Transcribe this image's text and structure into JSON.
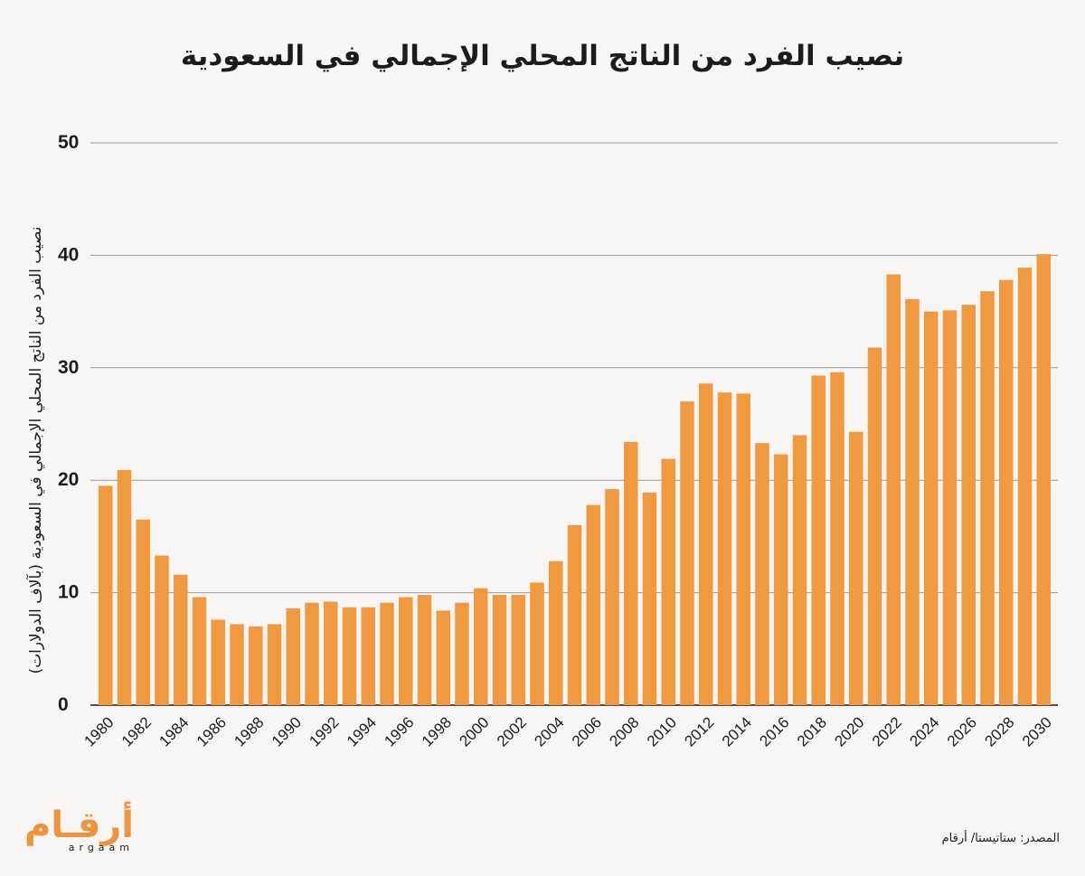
{
  "chart_data": {
    "type": "bar",
    "title": "نصيب الفرد من الناتج المحلي الإجمالي في السعودية",
    "ylabel": "نصيب الفرد من الناتج المحلي الإجمالي في السعودية (بآلاف الدولارات)",
    "xlabel": "",
    "ylim": [
      0,
      50
    ],
    "yticks": [
      0,
      10,
      20,
      30,
      40,
      50
    ],
    "grid": true,
    "bar_color": "#f0993f",
    "categories": [
      "1980",
      "1981",
      "1982",
      "1983",
      "1984",
      "1985",
      "1986",
      "1987",
      "1988",
      "1989",
      "1990",
      "1991",
      "1992",
      "1993",
      "1994",
      "1995",
      "1996",
      "1997",
      "1998",
      "1999",
      "2000",
      "2001",
      "2002",
      "2003",
      "2004",
      "2005",
      "2006",
      "2007",
      "2008",
      "2009",
      "2010",
      "2011",
      "2012",
      "2013",
      "2014",
      "2015",
      "2016",
      "2017",
      "2018",
      "2019",
      "2020",
      "2021",
      "2022",
      "2023",
      "2024",
      "2025",
      "2026",
      "2027",
      "2028",
      "2029",
      "2030"
    ],
    "xtick_labels": [
      "1980",
      "1982",
      "1984",
      "1986",
      "1988",
      "1990",
      "1992",
      "1994",
      "1996",
      "1998",
      "2000",
      "2002",
      "2004",
      "2006",
      "2008",
      "2010",
      "2012",
      "2014",
      "2016",
      "2018",
      "2020",
      "2022",
      "2024",
      "2026",
      "2028",
      "2030"
    ],
    "values": [
      19.5,
      20.9,
      16.5,
      13.3,
      11.6,
      9.6,
      7.6,
      7.2,
      7.0,
      7.2,
      8.6,
      9.1,
      9.2,
      8.7,
      8.7,
      9.1,
      9.6,
      9.8,
      8.4,
      9.1,
      10.4,
      9.8,
      9.8,
      10.9,
      12.8,
      16.0,
      17.8,
      19.2,
      23.4,
      18.9,
      21.9,
      27.0,
      28.6,
      27.8,
      27.7,
      23.3,
      22.3,
      24.0,
      29.3,
      29.6,
      24.3,
      31.8,
      38.3,
      36.1,
      35.0,
      35.1,
      35.6,
      36.8,
      37.8,
      38.9,
      40.1
    ]
  },
  "footer": {
    "source": "المصدر: ستاتيستا/ أرقام",
    "logo_ar": "أرقـام",
    "logo_en": "argaam"
  }
}
